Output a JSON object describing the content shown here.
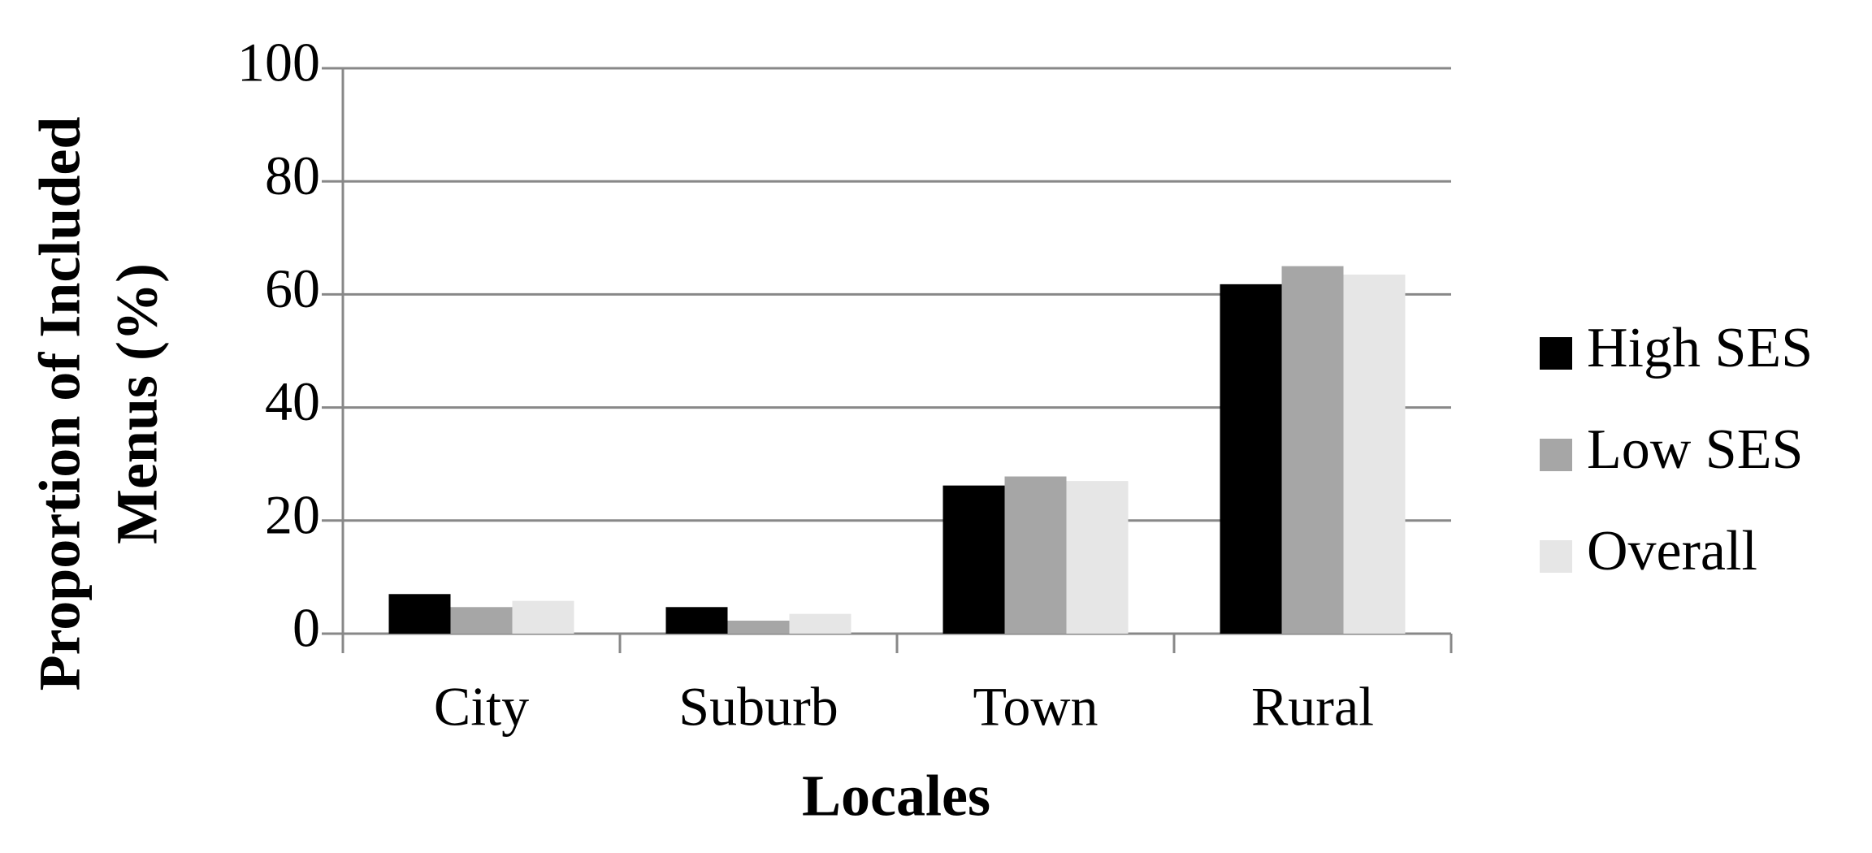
{
  "chart_data": {
    "type": "bar",
    "x_label": "Locales",
    "y_label": [
      "Proportion of Included",
      "Menus (%)"
    ],
    "categories": [
      "City",
      "Suburb",
      "Town",
      "Rural"
    ],
    "series": [
      {
        "name": "High SES",
        "color": "#000000",
        "values": [
          7,
          4.7,
          26.2,
          61.8
        ]
      },
      {
        "name": "Low SES",
        "color": "#a6a6a6",
        "values": [
          4.7,
          2.3,
          27.8,
          65
        ]
      },
      {
        "name": "Overall",
        "color": "#e6e6e6",
        "values": [
          5.8,
          3.5,
          27,
          63.5
        ]
      }
    ],
    "ylim": [
      0,
      100
    ],
    "yticks": [
      0,
      20,
      40,
      60,
      80,
      100
    ],
    "grid": true,
    "legend": "right"
  }
}
